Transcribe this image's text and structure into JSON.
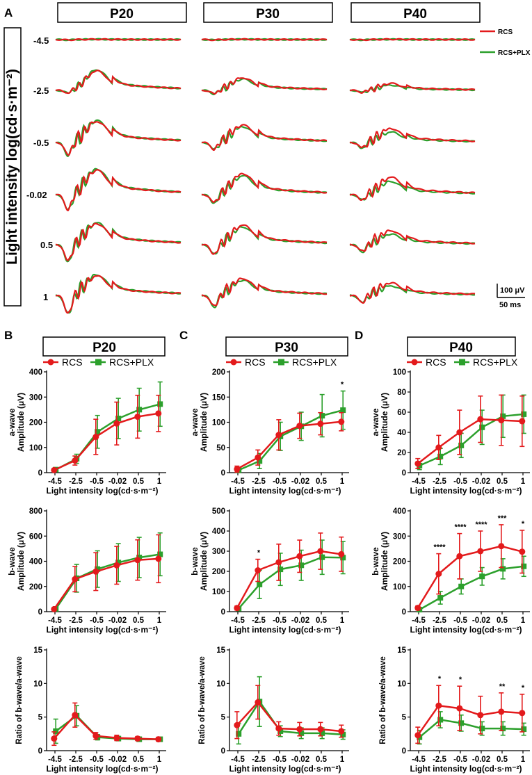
{
  "colors": {
    "rcs": "#e31a1c",
    "plx": "#2ca02c",
    "ink": "#000000"
  },
  "panelA": {
    "label": "A",
    "y_label": "Light intensity log(cd·s·m⁻²)",
    "columns": [
      "P20",
      "P30",
      "P40"
    ],
    "intensities": [
      "-4.5",
      "-2.5",
      "-0.5",
      "-0.02",
      "0.5",
      "1"
    ],
    "legend": [
      "RCS",
      "RCS+PLX"
    ],
    "scale_amp": "100 μV",
    "scale_time": "50 ms"
  },
  "grid_panels": {
    "B": {
      "label": "B",
      "title": "P20"
    },
    "C": {
      "label": "C",
      "title": "P30"
    },
    "D": {
      "label": "D",
      "title": "P40"
    }
  },
  "chart_data": [
    {
      "id": "B1",
      "type": "line",
      "title": "P20",
      "xlabel": "Light intensity log(cd·s·m⁻²)",
      "ylabel": [
        "a-wave",
        "Amplitude (μV)"
      ],
      "categories": [
        "-4.5",
        "-2.5",
        "-0.5",
        "-0.02",
        "0.5",
        "1"
      ],
      "ylim": [
        0,
        400
      ],
      "yticks": [
        0,
        100,
        200,
        300,
        400
      ],
      "legend": true,
      "series": [
        {
          "name": "RCS",
          "values": [
            10,
            48,
            142,
            195,
            222,
            235
          ],
          "err": [
            6,
            18,
            70,
            85,
            85,
            72
          ]
        },
        {
          "name": "RCS+PLX",
          "values": [
            12,
            55,
            162,
            215,
            250,
            272
          ],
          "err": [
            6,
            18,
            65,
            80,
            85,
            88
          ]
        }
      ],
      "sig": []
    },
    {
      "id": "B2",
      "type": "line",
      "title": "P20",
      "xlabel": "Light intensity log(cd·s·m⁻²)",
      "ylabel": [
        "b-wave",
        "Amplitude (μV)"
      ],
      "categories": [
        "-4.5",
        "-2.5",
        "-0.5",
        "-0.02",
        "0.5",
        "1"
      ],
      "ylim": [
        0,
        800
      ],
      "yticks": [
        0,
        200,
        400,
        600,
        800
      ],
      "legend": false,
      "series": [
        {
          "name": "RCS",
          "values": [
            20,
            258,
            318,
            368,
            410,
            420
          ],
          "err": [
            8,
            100,
            150,
            150,
            160,
            190
          ]
        },
        {
          "name": "RCS+PLX",
          "values": [
            22,
            265,
            338,
            390,
            430,
            455
          ],
          "err": [
            8,
            110,
            145,
            150,
            160,
            170
          ]
        }
      ],
      "sig": []
    },
    {
      "id": "B3",
      "type": "line",
      "title": "P20",
      "xlabel": "Light intensity log(cd·s·m⁻²)",
      "ylabel": [
        "Ratio of b-wave/a-wave"
      ],
      "categories": [
        "-4.5",
        "-2.5",
        "-0.5",
        "-0.02",
        "0.5",
        "1"
      ],
      "ylim": [
        0,
        15
      ],
      "yticks": [
        0,
        5,
        10,
        15
      ],
      "legend": false,
      "series": [
        {
          "name": "RCS",
          "values": [
            1.8,
            5.3,
            2.2,
            1.9,
            1.8,
            1.7
          ],
          "err": [
            1.0,
            1.8,
            0.5,
            0.4,
            0.3,
            0.3
          ]
        },
        {
          "name": "RCS+PLX",
          "values": [
            2.9,
            5.2,
            2.0,
            1.8,
            1.7,
            1.7
          ],
          "err": [
            1.8,
            1.5,
            0.4,
            0.3,
            0.3,
            0.3
          ]
        }
      ],
      "sig": []
    },
    {
      "id": "C1",
      "type": "line",
      "title": "P30",
      "xlabel": "Light intensity log(cd·s·m⁻²)",
      "ylabel": [
        "a-wave",
        "Amplitude (μV)"
      ],
      "categories": [
        "-4.5",
        "-2.5",
        "-0.5",
        "-0.02",
        "0.5",
        "1"
      ],
      "ylim": [
        0,
        200
      ],
      "yticks": [
        0,
        50,
        100,
        150,
        200
      ],
      "legend": true,
      "series": [
        {
          "name": "RCS",
          "values": [
            7,
            30,
            75,
            93,
            97,
            101
          ],
          "err": [
            6,
            15,
            30,
            25,
            22,
            18
          ]
        },
        {
          "name": "RCS+PLX",
          "values": [
            5,
            23,
            72,
            92,
            113,
            124
          ],
          "err": [
            5,
            15,
            28,
            28,
            42,
            38
          ]
        }
      ],
      "sig": [
        "",
        "",
        "",
        "",
        "",
        "*"
      ]
    },
    {
      "id": "C2",
      "type": "line",
      "title": "P30",
      "xlabel": "Light intensity log(cd·s·m⁻²)",
      "ylabel": [
        "b-wave",
        "Amplitude (μV)"
      ],
      "categories": [
        "-4.5",
        "-2.5",
        "-0.5",
        "-0.02",
        "0.5",
        "1"
      ],
      "ylim": [
        0,
        500
      ],
      "yticks": [
        0,
        100,
        200,
        300,
        400,
        500
      ],
      "legend": false,
      "series": [
        {
          "name": "RCS",
          "values": [
            18,
            205,
            245,
            275,
            300,
            285
          ],
          "err": [
            10,
            55,
            90,
            80,
            90,
            85
          ]
        },
        {
          "name": "RCS+PLX",
          "values": [
            15,
            135,
            210,
            230,
            270,
            268
          ],
          "err": [
            10,
            70,
            80,
            75,
            85,
            80
          ]
        }
      ],
      "sig": [
        "",
        "*",
        "",
        "",
        "",
        ""
      ]
    },
    {
      "id": "C3",
      "type": "line",
      "title": "P30",
      "xlabel": "Light intensity log(cd·s·m⁻²)",
      "ylabel": [
        "Ratio of b-wave/a-wave"
      ],
      "categories": [
        "-4.5",
        "-2.5",
        "-0.5",
        "-0.02",
        "0.5",
        "1"
      ],
      "ylim": [
        0,
        15
      ],
      "yticks": [
        0,
        5,
        10,
        15
      ],
      "legend": false,
      "series": [
        {
          "name": "RCS",
          "values": [
            3.8,
            7.2,
            3.3,
            3.2,
            3.2,
            2.9
          ],
          "err": [
            2.0,
            2.5,
            1.0,
            1.0,
            1.0,
            0.9
          ]
        },
        {
          "name": "RCS+PLX",
          "values": [
            2.5,
            7.3,
            2.9,
            2.6,
            2.6,
            2.4
          ],
          "err": [
            1.5,
            3.7,
            0.8,
            0.8,
            0.8,
            0.7
          ]
        }
      ],
      "sig": []
    },
    {
      "id": "D1",
      "type": "line",
      "title": "P40",
      "xlabel": "Light intensity log(cd·s·m⁻²)",
      "ylabel": [
        "a-wave",
        "Amplitude (μV)"
      ],
      "categories": [
        "-4.5",
        "-2.5",
        "-0.5",
        "-0.02",
        "0.5",
        "1"
      ],
      "ylim": [
        0,
        100
      ],
      "yticks": [
        0,
        20,
        40,
        60,
        80,
        100
      ],
      "legend": true,
      "series": [
        {
          "name": "RCS",
          "values": [
            9,
            25,
            40,
            53,
            52,
            51
          ],
          "err": [
            5,
            12,
            22,
            23,
            25,
            25
          ]
        },
        {
          "name": "RCS+PLX",
          "values": [
            7,
            16,
            27,
            45,
            56,
            58
          ],
          "err": [
            4,
            8,
            12,
            17,
            21,
            19
          ]
        }
      ],
      "sig": []
    },
    {
      "id": "D2",
      "type": "line",
      "title": "P40",
      "xlabel": "Light intensity log(cd·s·m⁻²)",
      "ylabel": [
        "b-wave",
        "Amplitude (μV)"
      ],
      "categories": [
        "-4.5",
        "-2.5",
        "-0.5",
        "-0.02",
        "0.5",
        "1"
      ],
      "ylim": [
        0,
        400
      ],
      "yticks": [
        0,
        100,
        200,
        300,
        400
      ],
      "legend": false,
      "series": [
        {
          "name": "RCS",
          "values": [
            15,
            150,
            220,
            240,
            260,
            238
          ],
          "err": [
            8,
            80,
            90,
            80,
            85,
            85
          ]
        },
        {
          "name": "RCS+PLX",
          "values": [
            8,
            55,
            100,
            140,
            170,
            180
          ],
          "err": [
            5,
            25,
            30,
            35,
            40,
            40
          ]
        }
      ],
      "sig": [
        "",
        "****",
        "****",
        "****",
        "***",
        "*"
      ]
    },
    {
      "id": "D3",
      "type": "line",
      "title": "P40",
      "xlabel": "Light intensity log(cd·s·m⁻²)",
      "ylabel": [
        "Ratio of b-wave/a-wave"
      ],
      "categories": [
        "-4.5",
        "-2.5",
        "-0.5",
        "-0.02",
        "0.5",
        "1"
      ],
      "ylim": [
        0,
        15
      ],
      "yticks": [
        0,
        5,
        10,
        15
      ],
      "legend": false,
      "series": [
        {
          "name": "RCS",
          "values": [
            2.3,
            6.7,
            6.3,
            5.3,
            5.8,
            5.6
          ],
          "err": [
            1.2,
            3.0,
            3.3,
            2.8,
            2.8,
            2.8
          ]
        },
        {
          "name": "RCS+PLX",
          "values": [
            2.0,
            4.6,
            4.1,
            3.3,
            3.3,
            3.2
          ],
          "err": [
            1.0,
            1.2,
            1.2,
            1.0,
            1.0,
            0.9
          ]
        }
      ],
      "sig": [
        "",
        "*",
        "*",
        "",
        "**",
        "*"
      ]
    }
  ]
}
